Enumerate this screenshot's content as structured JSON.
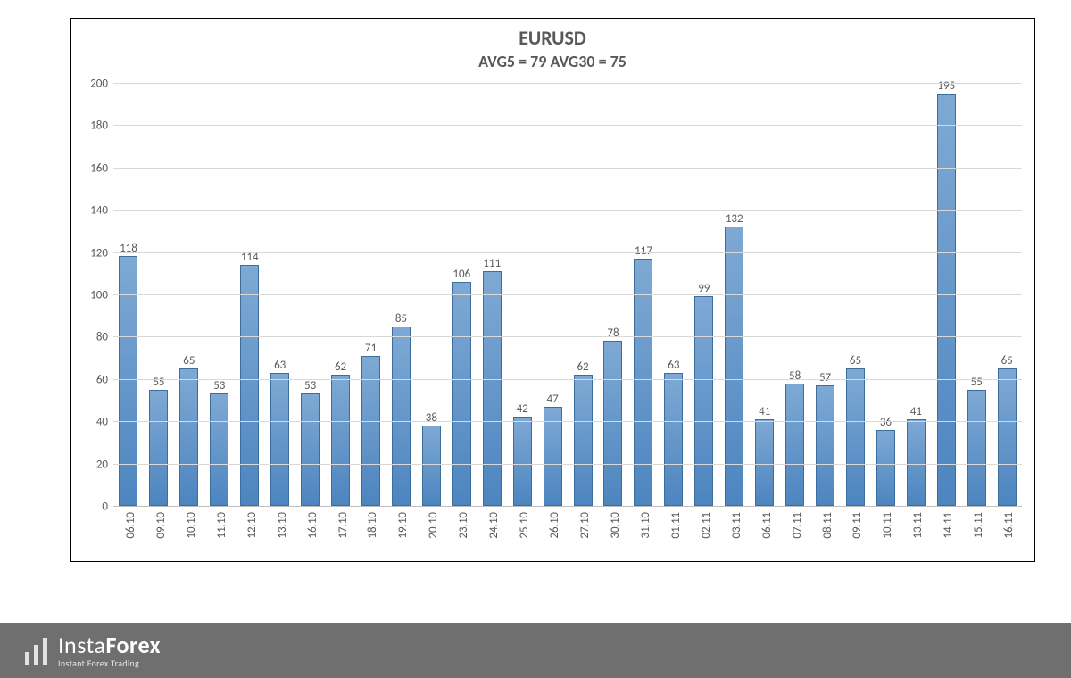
{
  "chart": {
    "type": "bar",
    "title": "EURUSD",
    "subtitle": "AVG5 = 79 AVG30 = 75",
    "title_fontsize": 22,
    "subtitle_fontsize": 18,
    "title_color": "#595959",
    "categories": [
      "06.10",
      "09.10",
      "10.10",
      "11.10",
      "12.10",
      "13.10",
      "16.10",
      "17.10",
      "18.10",
      "19.10",
      "20.10",
      "23.10",
      "24.10",
      "25.10",
      "26.10",
      "27.10",
      "30.10",
      "31.10",
      "01.11",
      "02.11",
      "03.11",
      "06.11",
      "07.11",
      "08.11",
      "09.11",
      "10.11",
      "13.11",
      "14.11",
      "15.11",
      "16.11"
    ],
    "values": [
      118,
      55,
      65,
      53,
      114,
      63,
      53,
      62,
      71,
      85,
      38,
      106,
      111,
      42,
      47,
      62,
      78,
      117,
      63,
      99,
      132,
      41,
      58,
      57,
      65,
      36,
      41,
      195,
      55,
      65
    ],
    "bar_fill": "#6699cc",
    "bar_fill_gradient_top": "#7fa9d4",
    "bar_fill_gradient_bottom": "#4d85bf",
    "bar_border": "#3b6e9e",
    "bar_width": 0.62,
    "ylim": [
      0,
      200
    ],
    "ytick_step": 20,
    "yticks": [
      0,
      20,
      40,
      60,
      80,
      100,
      120,
      140,
      160,
      180,
      200
    ],
    "grid_color": "#d9d9d9",
    "axis_color": "#bfbfbf",
    "label_fontsize": 13,
    "label_color": "#595959",
    "background_color": "#ffffff",
    "plot_border_color": "#000000",
    "x_label_rotation": -90
  },
  "watermark": {
    "brand_light": "Insta",
    "brand_bold": "Forex",
    "tagline": "Instant Forex Trading",
    "background": "#706f6f",
    "text_color": "#ffffff",
    "icon_bars": [
      14,
      22,
      30
    ]
  }
}
